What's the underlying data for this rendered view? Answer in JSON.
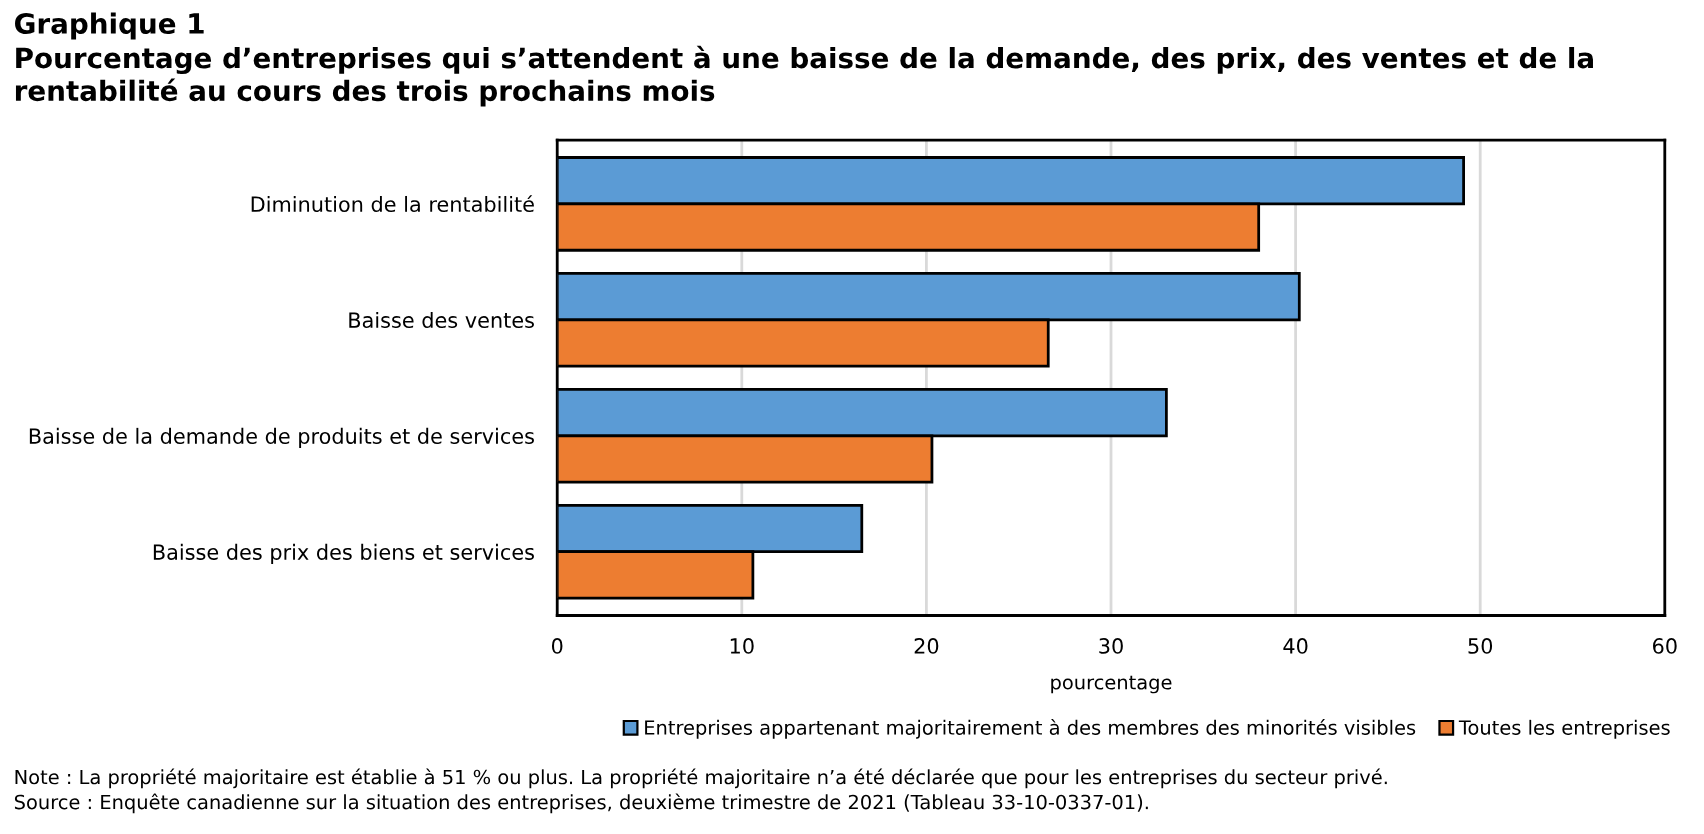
{
  "chart_data": {
    "type": "bar",
    "orientation": "horizontal",
    "title": "Graphique 1",
    "subtitle": "Pourcentage d’entreprises qui s’attendent à une baisse de la demande, des prix, des ventes et de la rentabilité au cours des trois prochains mois",
    "xlabel": "pourcentage",
    "categories": [
      "Diminution de la rentabilité",
      "Baisse des ventes",
      "Baisse de la demande de produits et de services",
      "Baisse des prix des biens et services"
    ],
    "series": [
      {
        "name": "Entreprises appartenant majoritairement à des membres des minorités visibles",
        "color": "#5b9bd5",
        "values": [
          49.1,
          40.2,
          33.0,
          16.5
        ]
      },
      {
        "name": "Toutes les entreprises",
        "color": "#ed7d31",
        "values": [
          38.0,
          26.6,
          20.3,
          10.6
        ]
      }
    ],
    "xlim": [
      0,
      60
    ],
    "xticks": [
      0,
      10,
      20,
      30,
      40,
      50,
      60
    ],
    "grid": "x",
    "legend": "bottom right",
    "annotations": [
      "Note : La propriété majoritaire est établie à 51 % ou plus. La propriété majoritaire n’a été déclarée que pour les entreprises du secteur privé.",
      "Source : Enquête canadienne sur la situation des entreprises, deuxième trimestre de 2021 (Tableau 33-10-0337-01)."
    ]
  }
}
